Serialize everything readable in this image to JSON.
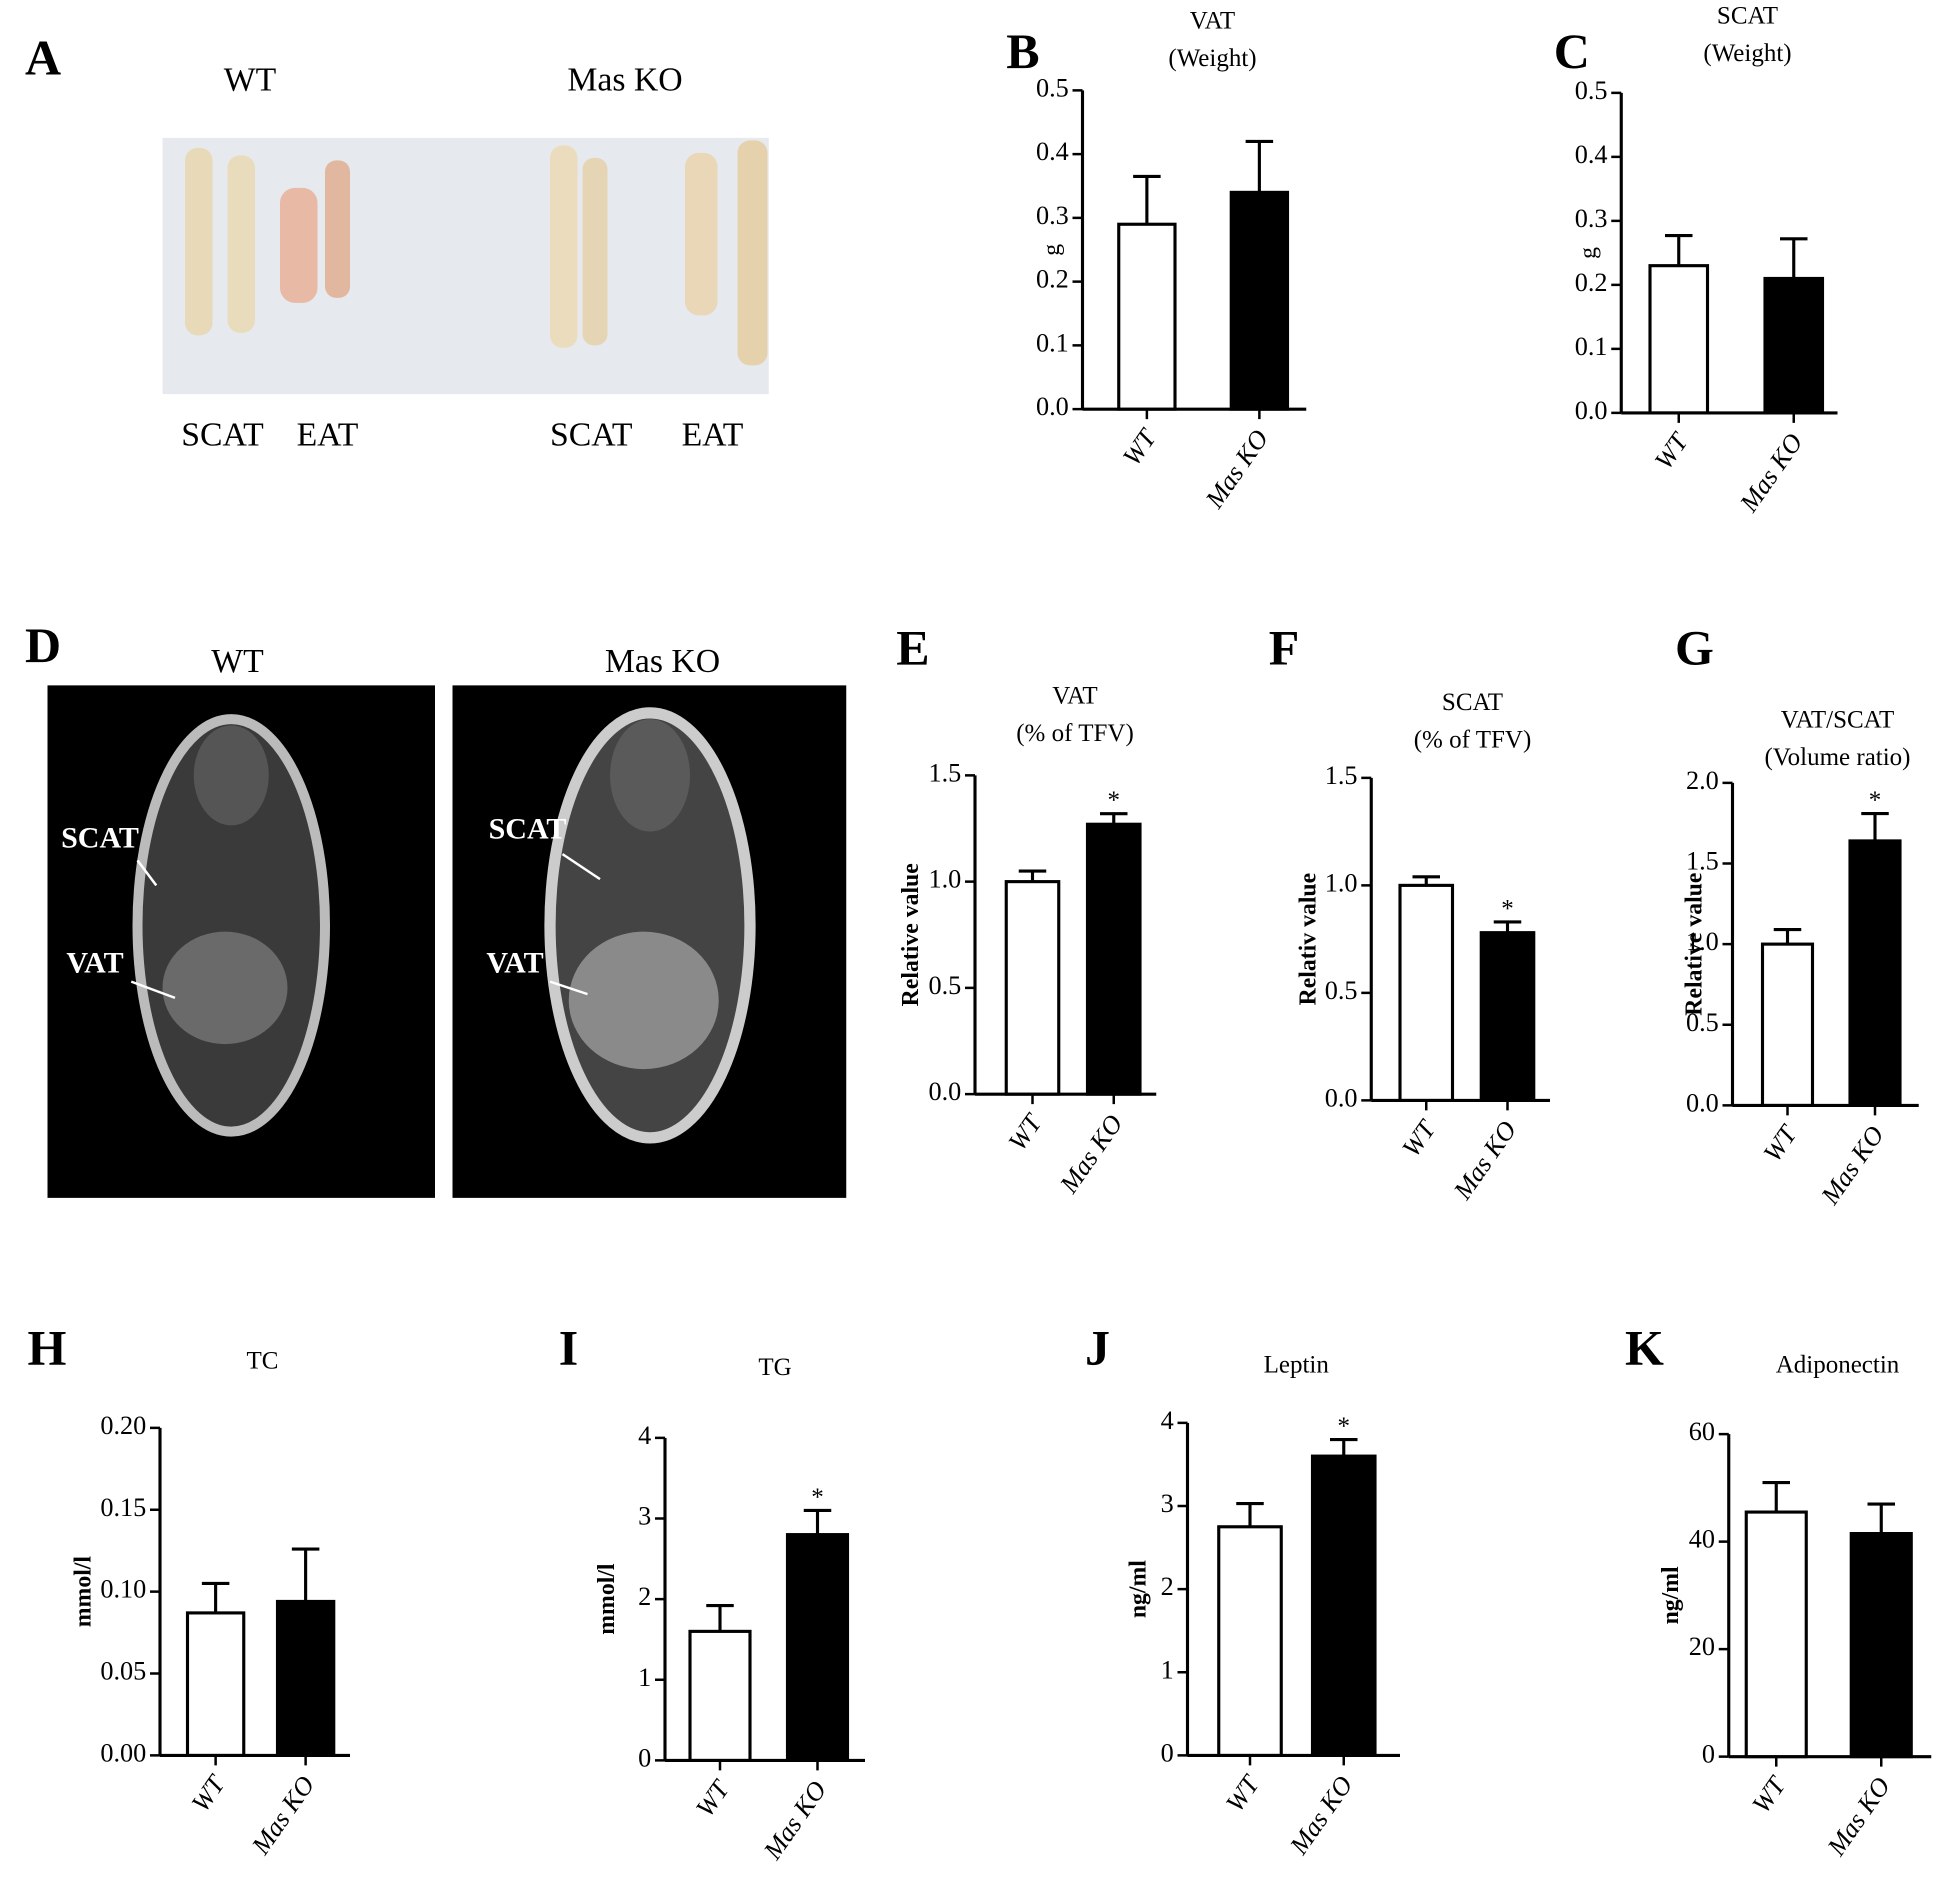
{
  "photo_panels": [
    {
      "panel_label": "A",
      "group_labels": [
        "WT",
        "Mas KO"
      ],
      "tissue_labels": [
        "SCAT",
        "EAT",
        "SCAT",
        "EAT"
      ]
    },
    {
      "panel_label": "D",
      "group_labels": [
        "WT",
        "Mas KO"
      ],
      "image_labels": [
        "SCAT",
        "VAT",
        "SCAT",
        "VAT"
      ]
    }
  ],
  "chart_data": [
    {
      "type": "bar",
      "panel_label": "B",
      "title": "VAT",
      "subtitle": "(Weight)",
      "ylabel": "g",
      "categories": [
        "WT",
        "Mas KO"
      ],
      "values": [
        0.29,
        0.34
      ],
      "errors": [
        0.075,
        0.08
      ],
      "colors": [
        "#ffffff",
        "#000000"
      ],
      "ylim": [
        0,
        0.5
      ],
      "yticks": [
        {
          "value": 0,
          "label": "0.0"
        },
        0.1,
        0.2,
        0.3,
        0.4,
        0.5
      ]
    },
    {
      "type": "bar",
      "panel_label": "C",
      "title": "SCAT",
      "subtitle": "(Weight)",
      "ylabel": "g",
      "categories": [
        "WT",
        "Mas KO"
      ],
      "values": [
        0.23,
        0.21
      ],
      "errors": [
        0.047,
        0.062
      ],
      "colors": [
        "#ffffff",
        "#000000"
      ],
      "ylim": [
        0,
        0.5
      ],
      "yticks": [
        {
          "value": 0,
          "label": "0.0"
        },
        0.1,
        0.2,
        0.3,
        0.4,
        0.5
      ]
    },
    {
      "type": "bar",
      "panel_label": "E",
      "title": "VAT",
      "subtitle": "(% of TFV)",
      "ylabel": "Relative value",
      "categories": [
        "WT",
        "Mas KO"
      ],
      "values": [
        1.0,
        1.27
      ],
      "errors": [
        0.05,
        0.05
      ],
      "significance": [
        null,
        "*"
      ],
      "colors": [
        "#ffffff",
        "#000000"
      ],
      "ylim": [
        0,
        1.5
      ],
      "yticks": [
        {
          "value": 0,
          "label": "0.0"
        },
        0.5,
        {
          "value": 1,
          "label": "1.0"
        },
        1.5
      ]
    },
    {
      "type": "bar",
      "panel_label": "F",
      "title": "SCAT",
      "subtitle": "(% of TFV)",
      "ylabel": "Relativ value",
      "categories": [
        "WT",
        "Mas KO"
      ],
      "values": [
        1.0,
        0.78
      ],
      "errors": [
        0.04,
        0.05
      ],
      "significance": [
        null,
        "*"
      ],
      "colors": [
        "#ffffff",
        "#000000"
      ],
      "ylim": [
        0,
        1.5
      ],
      "yticks": [
        {
          "value": 0,
          "label": "0.0"
        },
        0.5,
        {
          "value": 1,
          "label": "1.0"
        },
        1.5
      ]
    },
    {
      "type": "bar",
      "panel_label": "G",
      "title": "VAT/SCAT",
      "subtitle": "(Volume ratio)",
      "ylabel": "Relative value",
      "categories": [
        "WT",
        "Mas KO"
      ],
      "values": [
        1.0,
        1.64
      ],
      "errors": [
        0.09,
        0.17
      ],
      "significance": [
        null,
        "*"
      ],
      "colors": [
        "#ffffff",
        "#000000"
      ],
      "ylim": [
        0,
        2
      ],
      "yticks": [
        {
          "value": 0,
          "label": "0.0"
        },
        0.5,
        {
          "value": 1,
          "label": "1.0"
        },
        1.5,
        {
          "value": 2,
          "label": "2.0"
        }
      ]
    },
    {
      "type": "bar",
      "panel_label": "H",
      "title": "TC",
      "ylabel": "mmol/l",
      "categories": [
        "WT",
        "Mas KO"
      ],
      "values": [
        0.087,
        0.094
      ],
      "errors": [
        0.018,
        0.032
      ],
      "colors": [
        "#ffffff",
        "#000000"
      ],
      "ylim": [
        0,
        0.2
      ],
      "yticks": [
        {
          "value": 0,
          "label": "0.00"
        },
        {
          "value": 0.05,
          "label": "0.05"
        },
        {
          "value": 0.1,
          "label": "0.10"
        },
        {
          "value": 0.15,
          "label": "0.15"
        },
        {
          "value": 0.2,
          "label": "0.20"
        }
      ]
    },
    {
      "type": "bar",
      "panel_label": "I",
      "title": "TG",
      "ylabel": "mmol/l",
      "categories": [
        "WT",
        "Mas KO"
      ],
      "values": [
        1.6,
        2.8
      ],
      "errors": [
        0.32,
        0.3
      ],
      "significance": [
        null,
        "*"
      ],
      "colors": [
        "#ffffff",
        "#000000"
      ],
      "ylim": [
        0,
        4
      ],
      "yticks": [
        0,
        1,
        2,
        3,
        4
      ]
    },
    {
      "type": "bar",
      "panel_label": "J",
      "title": "Leptin",
      "ylabel": "ng/ml",
      "categories": [
        "WT",
        "Mas KO"
      ],
      "values": [
        2.75,
        3.6
      ],
      "errors": [
        0.28,
        0.2
      ],
      "significance": [
        null,
        "*"
      ],
      "colors": [
        "#ffffff",
        "#000000"
      ],
      "ylim": [
        0,
        4
      ],
      "yticks": [
        0,
        1,
        2,
        3,
        4
      ]
    },
    {
      "type": "bar",
      "panel_label": "K",
      "title": "Adiponectin",
      "ylabel": "ng/ml",
      "categories": [
        "WT",
        "Mas KO"
      ],
      "values": [
        45.5,
        41.5
      ],
      "errors": [
        5.5,
        5.5
      ],
      "colors": [
        "#ffffff",
        "#000000"
      ],
      "ylim": [
        0,
        60
      ],
      "yticks": [
        0,
        20,
        40,
        60
      ]
    }
  ]
}
